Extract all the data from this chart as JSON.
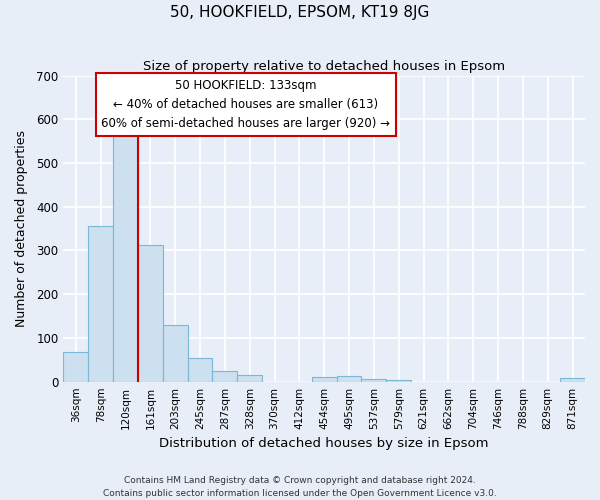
{
  "title": "50, HOOKFIELD, EPSOM, KT19 8JG",
  "subtitle": "Size of property relative to detached houses in Epsom",
  "xlabel": "Distribution of detached houses by size in Epsom",
  "ylabel": "Number of detached properties",
  "footer_line1": "Contains HM Land Registry data © Crown copyright and database right 2024.",
  "footer_line2": "Contains public sector information licensed under the Open Government Licence v3.0.",
  "bar_labels": [
    "36sqm",
    "78sqm",
    "120sqm",
    "161sqm",
    "203sqm",
    "245sqm",
    "287sqm",
    "328sqm",
    "370sqm",
    "412sqm",
    "454sqm",
    "495sqm",
    "537sqm",
    "579sqm",
    "621sqm",
    "662sqm",
    "704sqm",
    "746sqm",
    "788sqm",
    "829sqm",
    "871sqm"
  ],
  "bar_values": [
    68,
    355,
    568,
    313,
    130,
    55,
    25,
    15,
    0,
    0,
    10,
    12,
    5,
    3,
    0,
    0,
    0,
    0,
    0,
    0,
    8
  ],
  "bar_color": "#cce0f0",
  "bar_edgecolor": "#7ab8d8",
  "ylim": [
    0,
    700
  ],
  "yticks": [
    0,
    100,
    200,
    300,
    400,
    500,
    600,
    700
  ],
  "vline_x": 2.5,
  "vline_color": "#cc0000",
  "annotation_line1": "50 HOOKFIELD: 133sqm",
  "annotation_line2": "← 40% of detached houses are smaller (613)",
  "annotation_line3": "60% of semi-detached houses are larger (920) →",
  "annotation_box_color": "#ffffff",
  "annotation_box_edgecolor": "#cc0000",
  "bg_color": "#e8eef8",
  "grid_color": "#ffffff",
  "bar_width": 1.0
}
